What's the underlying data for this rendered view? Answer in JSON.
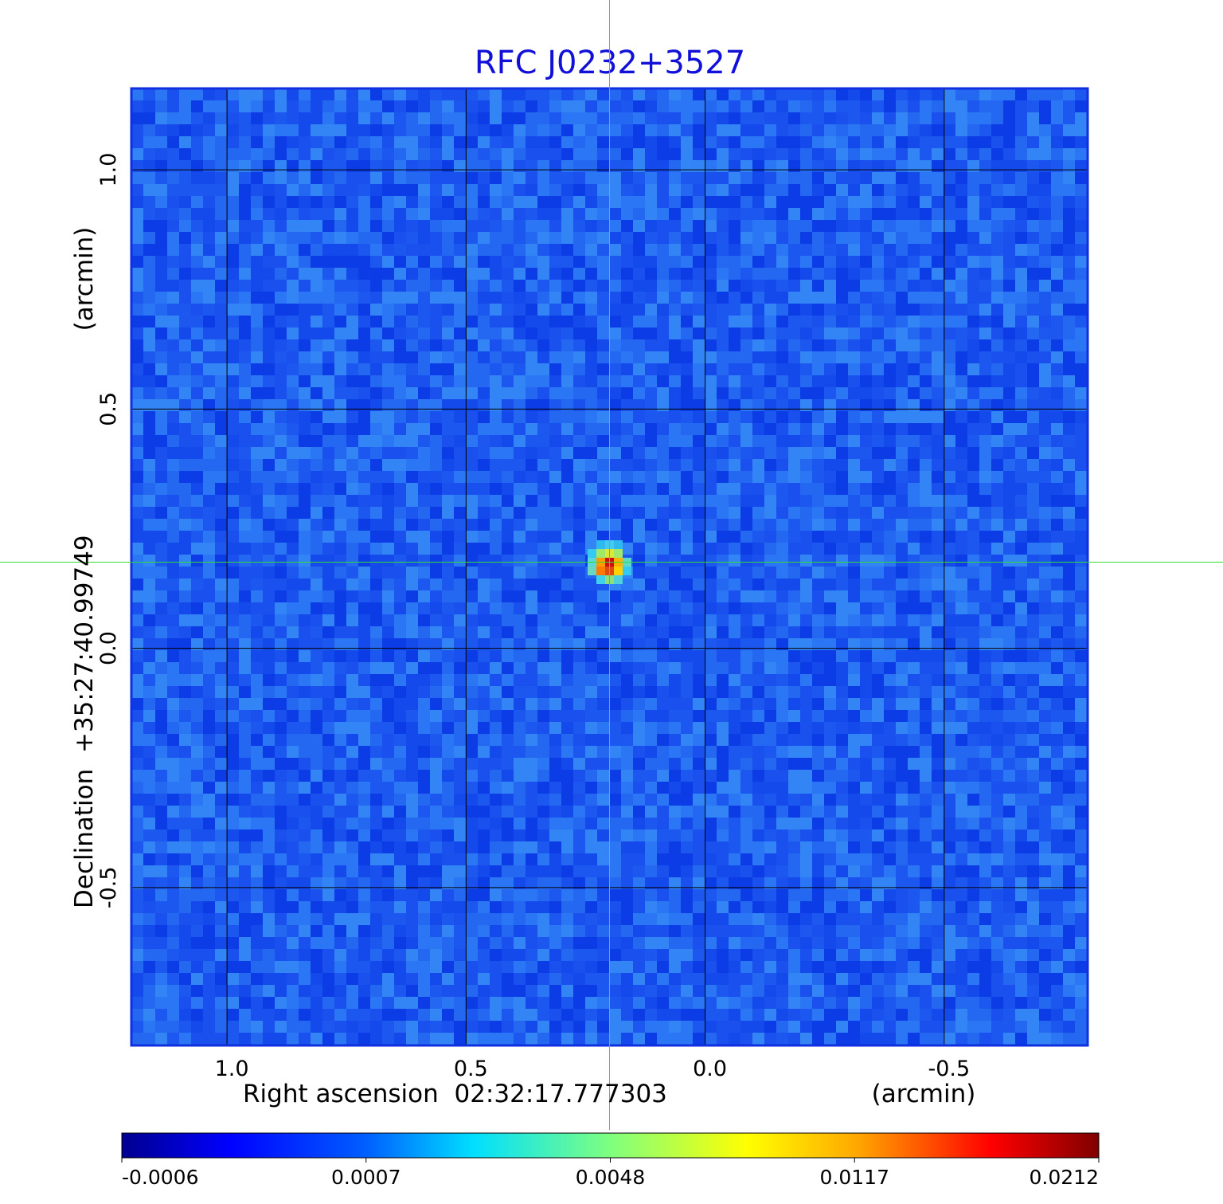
{
  "chart_data": {
    "type": "heatmap",
    "title": "RFC J0232+3527",
    "xlabel": "Right ascension  02:32:17.777303",
    "xunit": "(arcmin)",
    "ylabel": "Declination  +35:27:40.99749",
    "yunit": "(arcmin)",
    "xlim": [
      1.2,
      -0.8
    ],
    "ylim": [
      -0.83,
      1.17
    ],
    "x_ticks": [
      {
        "value": 1.0,
        "label": "1.0"
      },
      {
        "value": 0.5,
        "label": "0.5"
      },
      {
        "value": 0.0,
        "label": "0.0"
      },
      {
        "value": -0.5,
        "label": "-0.5"
      }
    ],
    "y_ticks": [
      {
        "value": 1.0,
        "label": "1.0"
      },
      {
        "value": 0.5,
        "label": "0.5"
      },
      {
        "value": 0.0,
        "label": "0.0"
      },
      {
        "value": -0.5,
        "label": "-0.5"
      }
    ],
    "grid": true,
    "crosshair": {
      "x": 0.2,
      "y": 0.18,
      "color": "#33dd33"
    },
    "source_peak": {
      "x": 0.2,
      "y": 0.18,
      "value": 0.0212
    },
    "colormap": "jet",
    "colorbar": {
      "orientation": "horizontal",
      "placement": "bottom",
      "ticks": [
        "-0.0006",
        "0.0007",
        "0.0048",
        "0.0117",
        "0.0212"
      ]
    },
    "colors": {
      "title": "#1010d8",
      "frame": "#1030e0",
      "grid": "#000000",
      "background_noise": "#1f63f0"
    }
  }
}
